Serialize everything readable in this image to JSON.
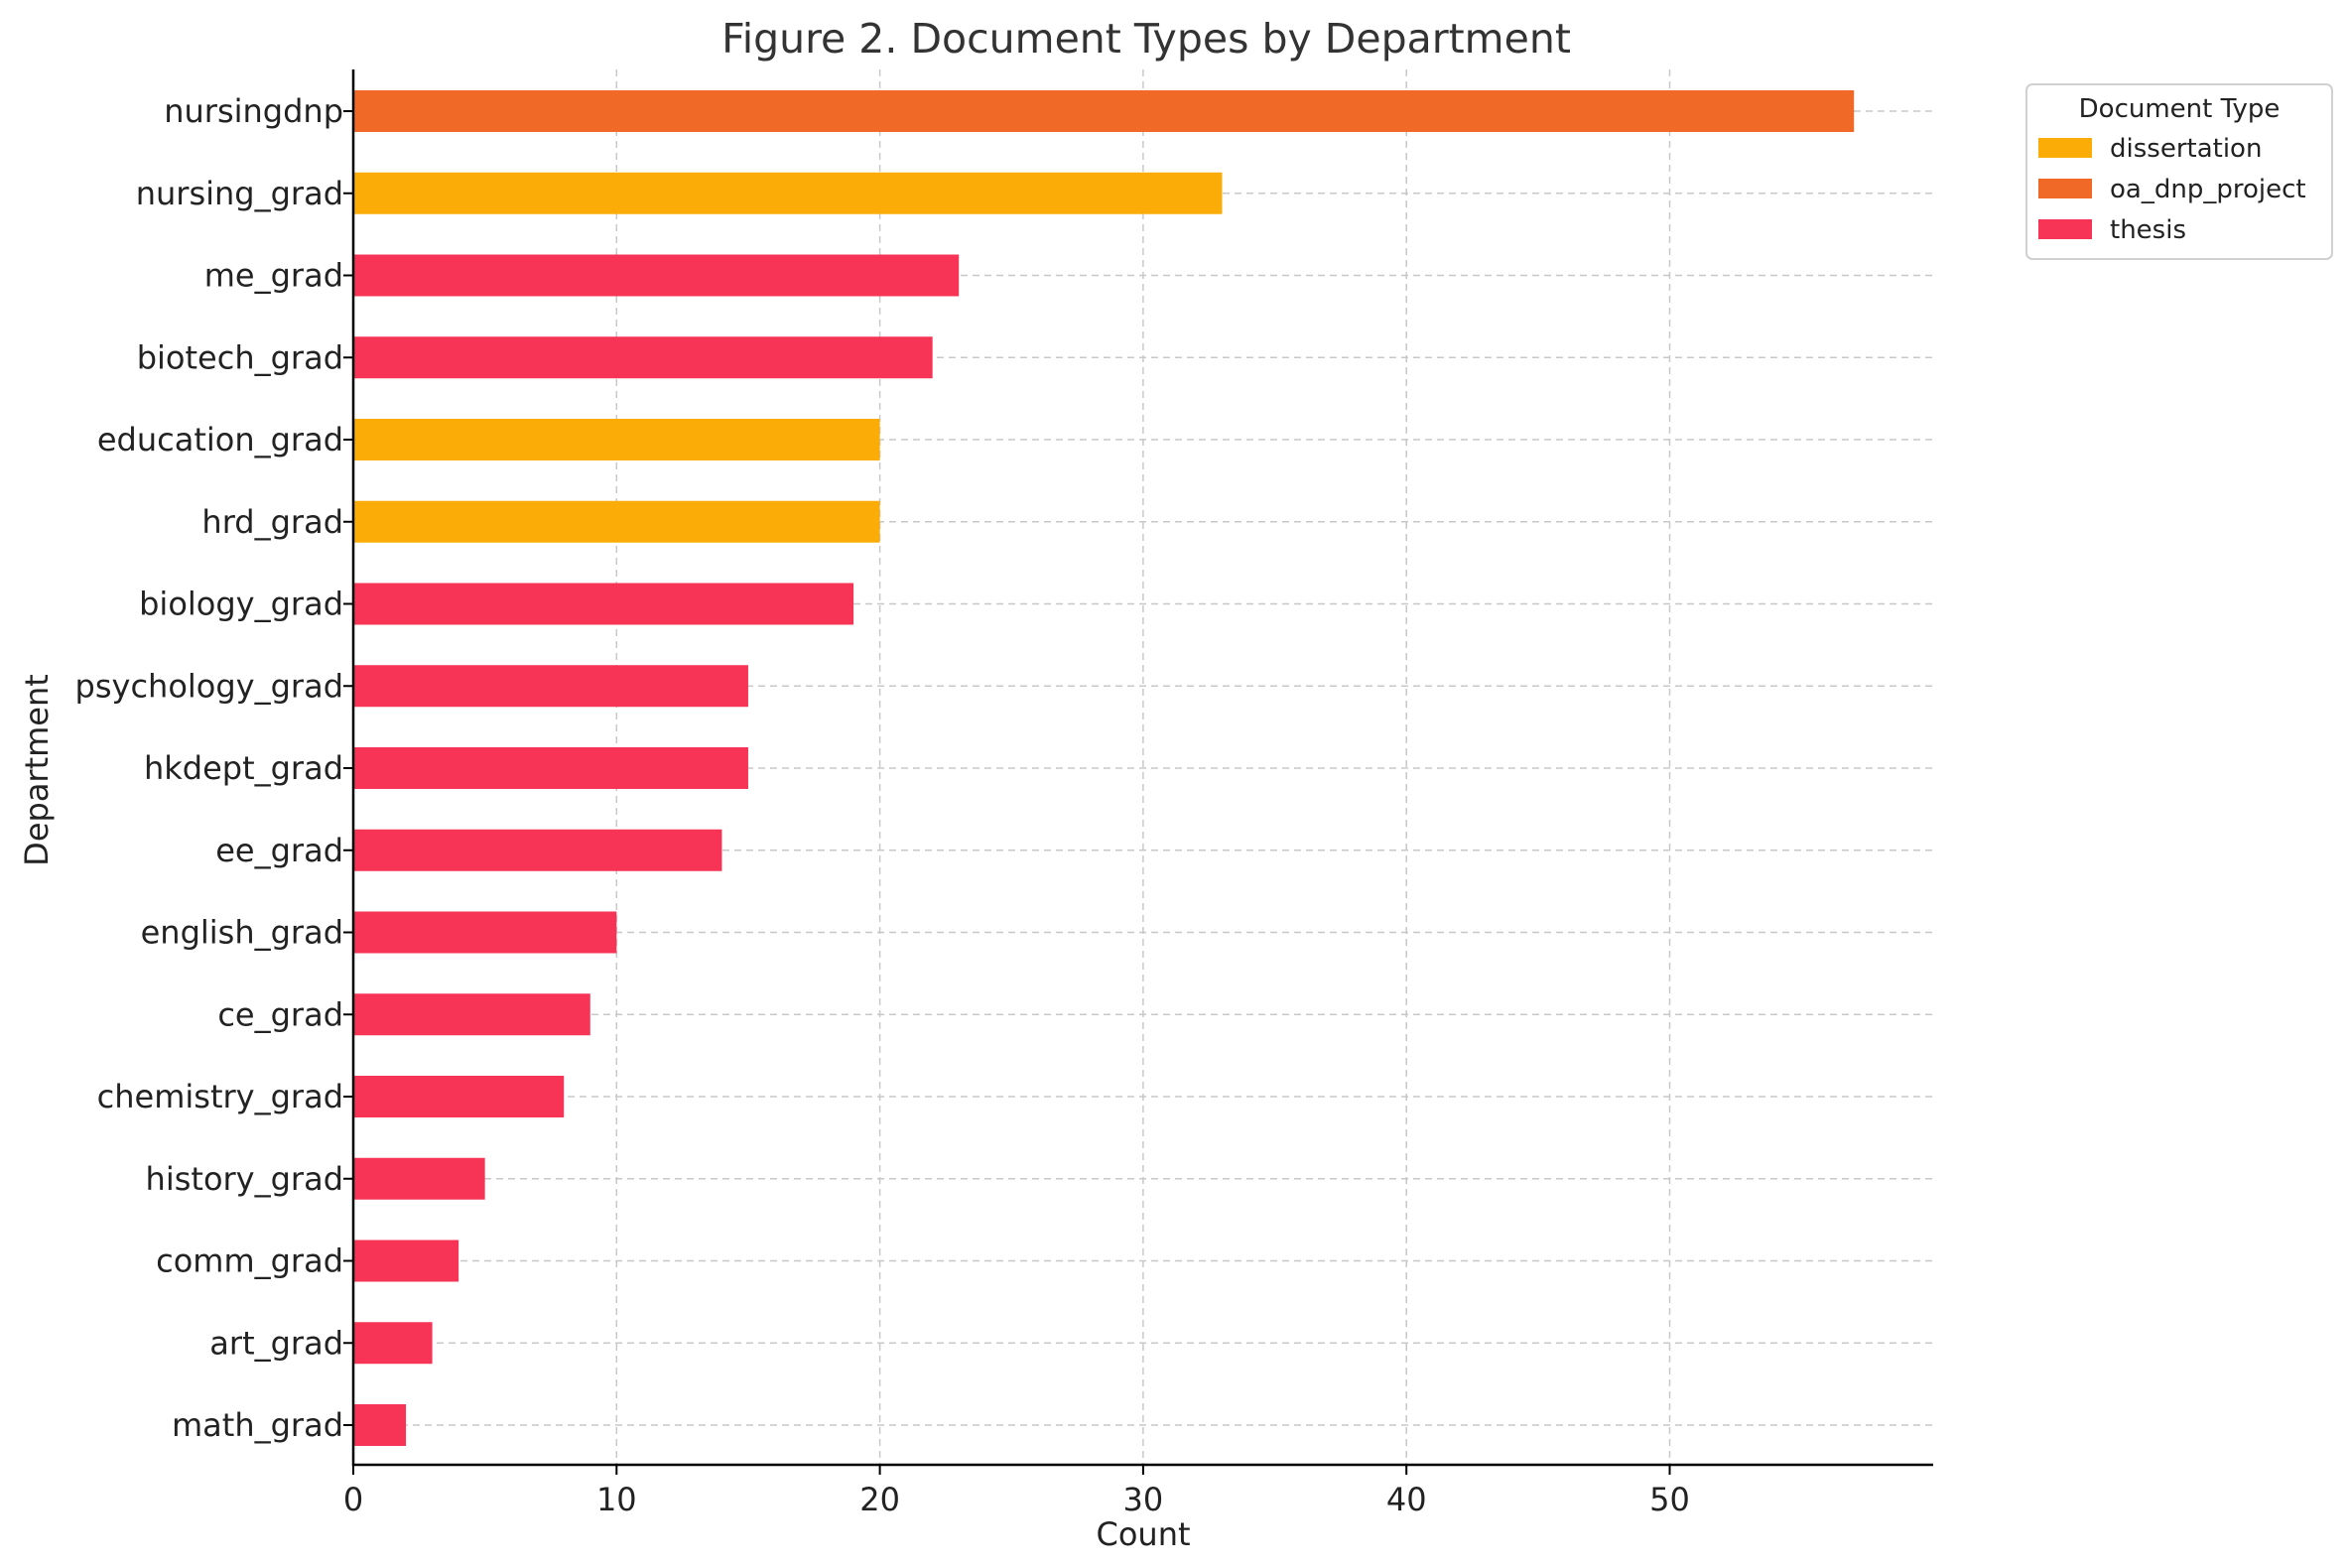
{
  "chart_data": {
    "type": "bar",
    "orientation": "horizontal",
    "title": "Figure 2. Document Types by Department",
    "xlabel": "Count",
    "ylabel": "Department",
    "xlim": [
      0,
      60
    ],
    "xticks": [
      0,
      10,
      20,
      30,
      40,
      50
    ],
    "grid": true,
    "legend": {
      "title": "Document Type",
      "placement": "outside-top-right",
      "entries": [
        {
          "name": "dissertation",
          "color": "#FCAC06"
        },
        {
          "name": "oa_dnp_project",
          "color": "#F06926"
        },
        {
          "name": "thesis",
          "color": "#F73456"
        }
      ]
    },
    "categories": [
      "nursingdnp",
      "nursing_grad",
      "me_grad",
      "biotech_grad",
      "education_grad",
      "hrd_grad",
      "biology_grad",
      "psychology_grad",
      "hkdept_grad",
      "ee_grad",
      "english_grad",
      "ce_grad",
      "chemistry_grad",
      "history_grad",
      "comm_grad",
      "art_grad",
      "math_grad"
    ],
    "values": [
      57,
      33,
      23,
      22,
      20,
      20,
      19,
      15,
      15,
      14,
      10,
      9,
      8,
      5,
      4,
      3,
      2
    ],
    "types": [
      "oa_dnp_project",
      "dissertation",
      "thesis",
      "thesis",
      "dissertation",
      "dissertation",
      "thesis",
      "thesis",
      "thesis",
      "thesis",
      "thesis",
      "thesis",
      "thesis",
      "thesis",
      "thesis",
      "thesis",
      "thesis"
    ]
  }
}
